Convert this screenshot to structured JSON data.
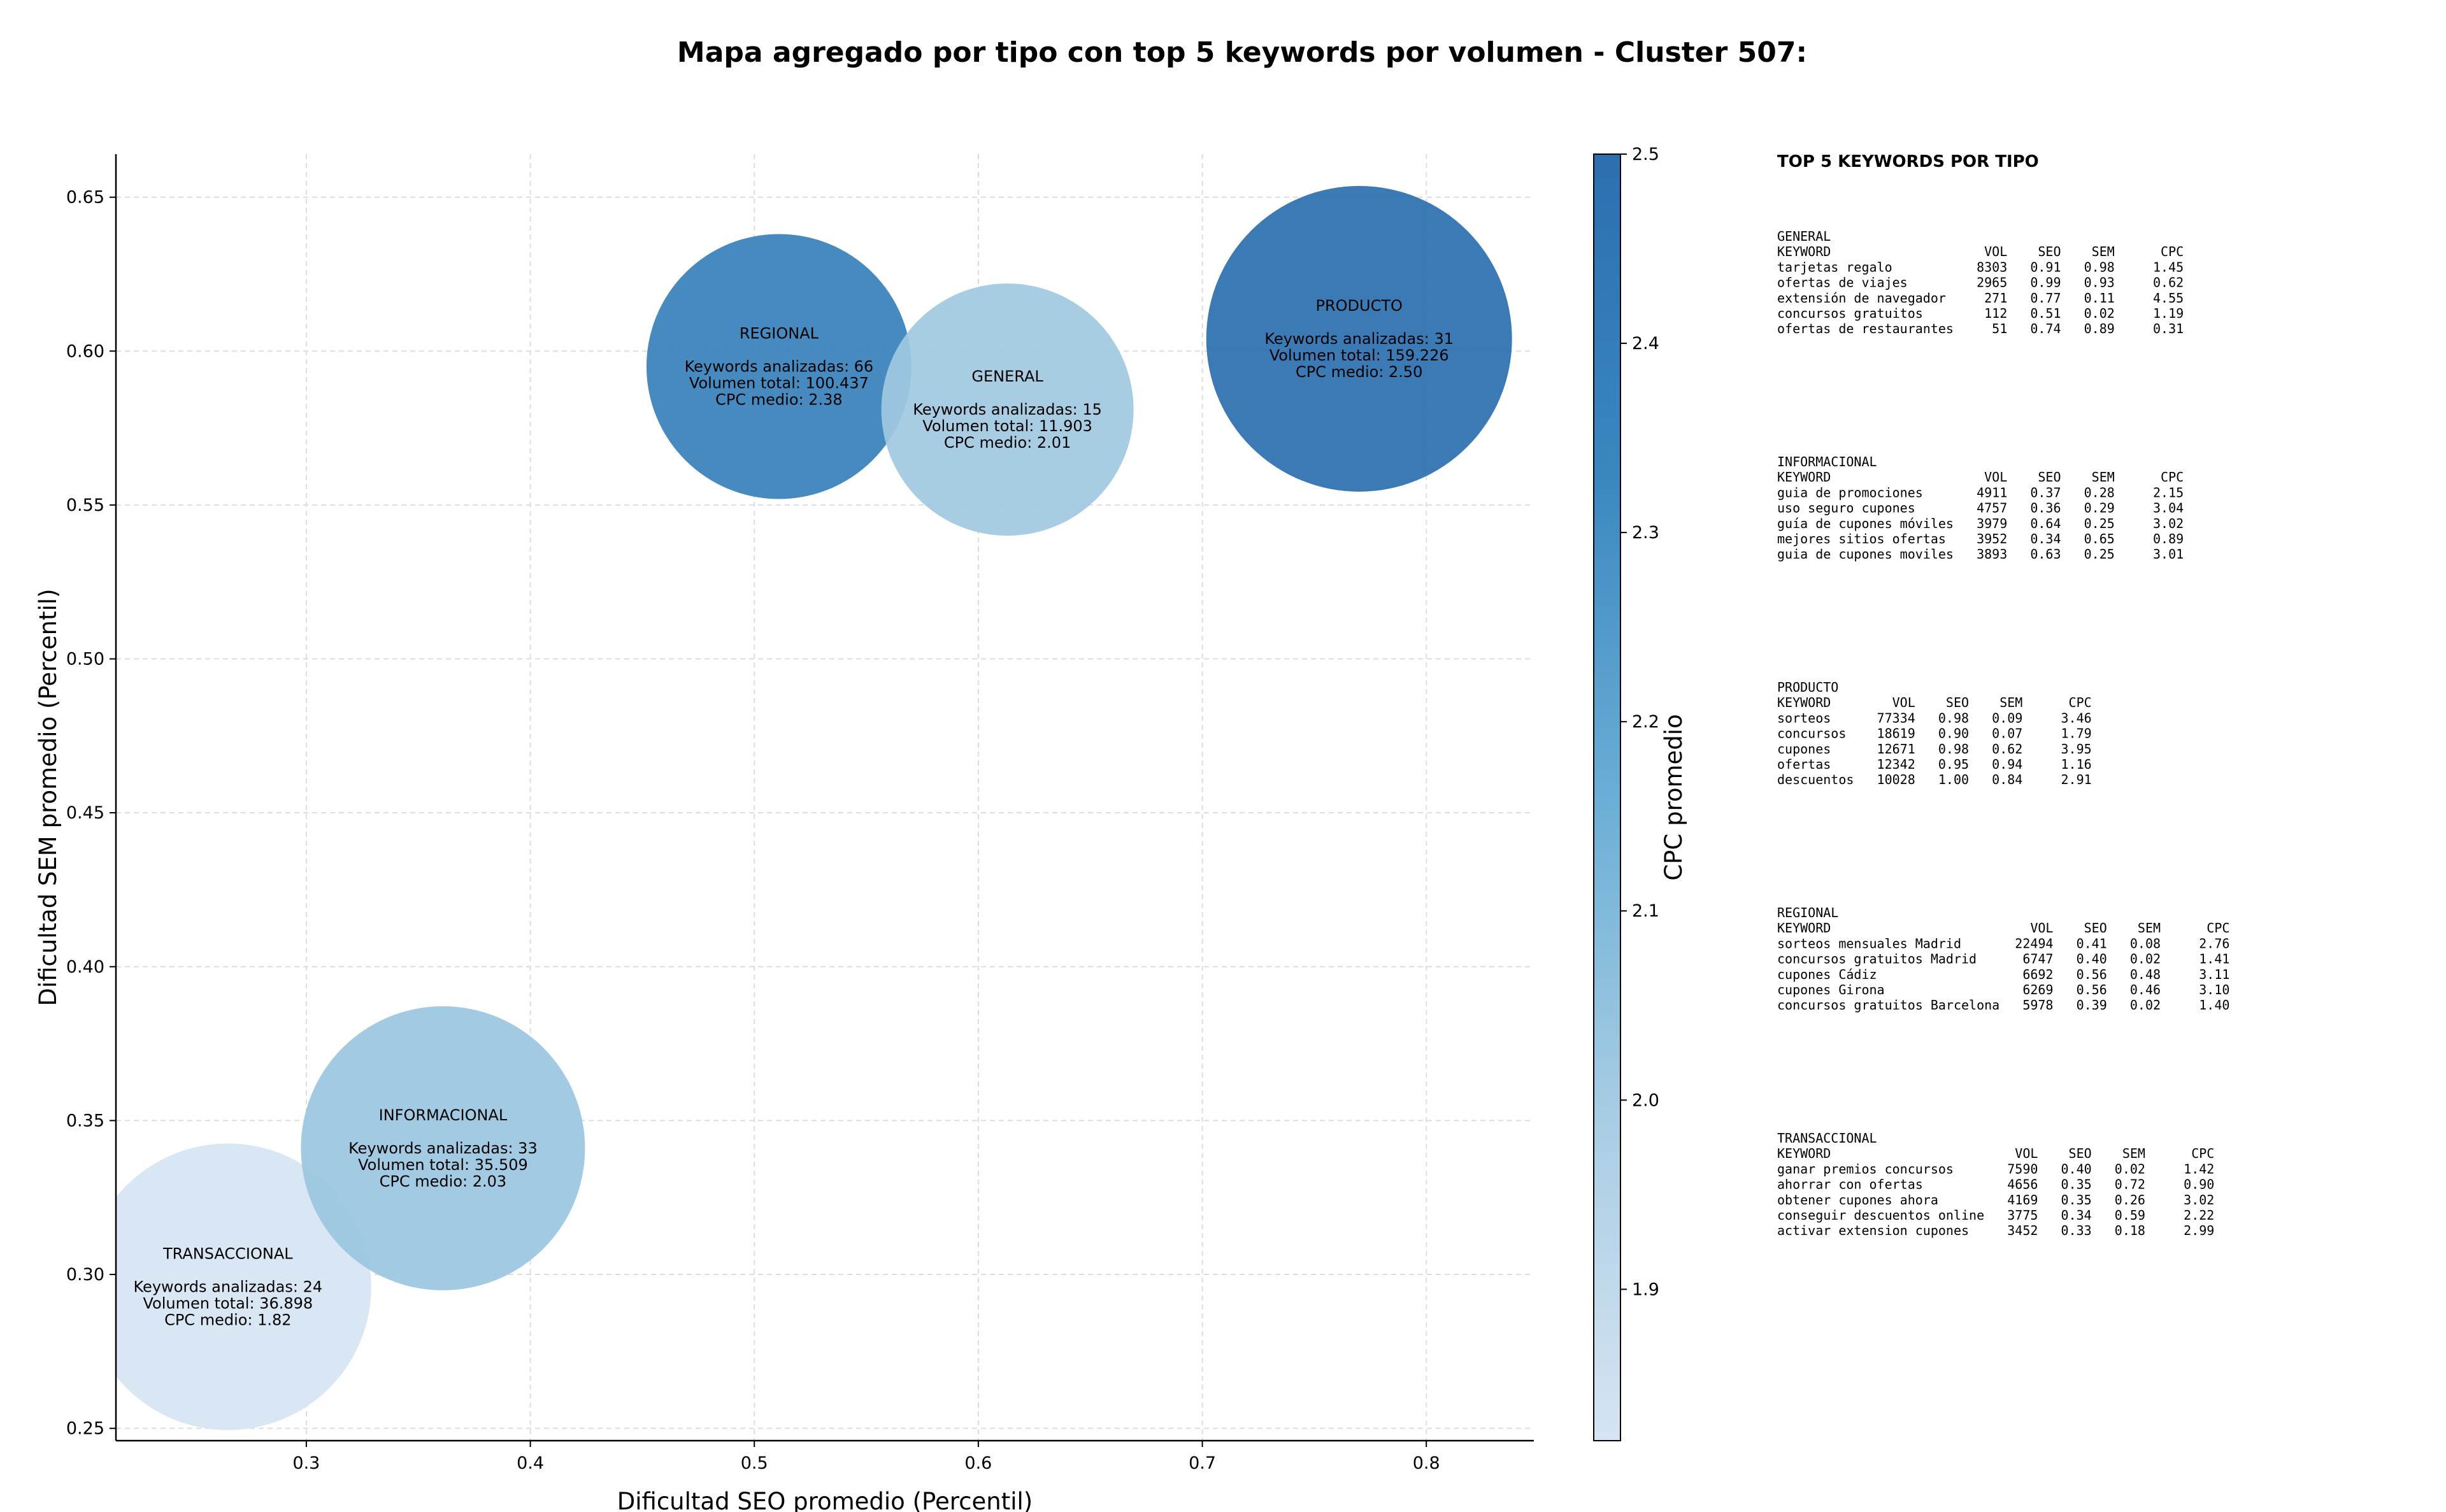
{
  "title": "Mapa agregado por tipo con top 5 keywords por volumen - Cluster 507:",
  "chart_data": {
    "type": "scatter",
    "subtype": "bubble",
    "xlabel": "Dificultad SEO promedio (Percentil)",
    "ylabel": "Dificultad SEM promedio (Percentil)",
    "xlim": [
      0.215,
      0.848
    ],
    "ylim": [
      0.246,
      0.664
    ],
    "xticks": [
      "0.3",
      "0.4",
      "0.5",
      "0.6",
      "0.7",
      "0.8"
    ],
    "yticks": [
      "0.25",
      "0.30",
      "0.35",
      "0.40",
      "0.45",
      "0.50",
      "0.55",
      "0.60",
      "0.65"
    ],
    "grid": true,
    "colorbar": {
      "label": "CPC promedio",
      "min": 1.82,
      "max": 2.5,
      "ticks": [
        "1.9",
        "2.0",
        "2.1",
        "2.2",
        "2.3",
        "2.4",
        "2.5"
      ],
      "colormap": [
        "#d6e4f2",
        "#a8cde3",
        "#6baed6",
        "#3a87c0",
        "#2b6faf"
      ]
    },
    "points": [
      {
        "name": "REGIONAL",
        "x": 0.511,
        "y": 0.595,
        "cpc": 2.38,
        "lines": [
          "REGIONAL",
          "",
          "Keywords analizadas: 66",
          "Volumen total: 100.437",
          "CPC medio: 2.38"
        ]
      },
      {
        "name": "GENERAL",
        "x": 0.613,
        "y": 0.581,
        "cpc": 2.01,
        "lines": [
          "GENERAL",
          "",
          "Keywords analizadas: 15",
          "Volumen total: 11.903",
          "CPC medio: 2.01"
        ]
      },
      {
        "name": "PRODUCTO",
        "x": 0.77,
        "y": 0.604,
        "cpc": 2.5,
        "lines": [
          "PRODUCTO",
          "",
          "Keywords analizadas: 31",
          "Volumen total: 159.226",
          "CPC medio: 2.50"
        ]
      },
      {
        "name": "INFORMACIONAL",
        "x": 0.361,
        "y": 0.341,
        "cpc": 2.03,
        "lines": [
          "INFORMACIONAL",
          "",
          "Keywords analizadas: 33",
          "Volumen total: 35.509",
          "CPC medio: 2.03"
        ]
      },
      {
        "name": "TRANSACCIONAL",
        "x": 0.265,
        "y": 0.296,
        "cpc": 1.82,
        "lines": [
          "TRANSACCIONAL",
          "",
          "Keywords analizadas: 24",
          "Volumen total: 36.898",
          "CPC medio: 1.82"
        ]
      }
    ]
  },
  "panel": {
    "title": "TOP 5 KEYWORDS POR TIPO",
    "groups": [
      {
        "name": "GENERAL",
        "lines": [
          "GENERAL",
          "KEYWORD                    VOL    SEO    SEM      CPC",
          "tarjetas regalo           8303   0.91   0.98     1.45",
          "ofertas de viajes         2965   0.99   0.93     0.62",
          "extensión de navegador     271   0.77   0.11     4.55",
          "concursos gratuitos        112   0.51   0.02     1.19",
          "ofertas de restaurantes     51   0.74   0.89     0.31"
        ]
      },
      {
        "name": "INFORMACIONAL",
        "lines": [
          "INFORMACIONAL",
          "KEYWORD                    VOL    SEO    SEM      CPC",
          "guia de promociones       4911   0.37   0.28     2.15",
          "uso seguro cupones        4757   0.36   0.29     3.04",
          "guía de cupones móviles   3979   0.64   0.25     3.02",
          "mejores sitios ofertas    3952   0.34   0.65     0.89",
          "guia de cupones moviles   3893   0.63   0.25     3.01"
        ]
      },
      {
        "name": "PRODUCTO",
        "lines": [
          "PRODUCTO",
          "KEYWORD        VOL    SEO    SEM      CPC",
          "sorteos      77334   0.98   0.09     3.46",
          "concursos    18619   0.90   0.07     1.79",
          "cupones      12671   0.98   0.62     3.95",
          "ofertas      12342   0.95   0.94     1.16",
          "descuentos   10028   1.00   0.84     2.91"
        ]
      },
      {
        "name": "REGIONAL",
        "lines": [
          "REGIONAL",
          "KEYWORD                          VOL    SEO    SEM      CPC",
          "sorteos mensuales Madrid       22494   0.41   0.08     2.76",
          "concursos gratuitos Madrid      6747   0.40   0.02     1.41",
          "cupones Cádiz                   6692   0.56   0.48     3.11",
          "cupones Girona                  6269   0.56   0.46     3.10",
          "concursos gratuitos Barcelona   5978   0.39   0.02     1.40"
        ]
      },
      {
        "name": "TRANSACCIONAL",
        "lines": [
          "TRANSACCIONAL",
          "KEYWORD                        VOL    SEO    SEM      CPC",
          "ganar premios concursos       7590   0.40   0.02     1.42",
          "ahorrar con ofertas           4656   0.35   0.72     0.90",
          "obtener cupones ahora         4169   0.35   0.26     3.02",
          "conseguir descuentos online   3775   0.34   0.59     2.22",
          "activar extension cupones     3452   0.33   0.18     2.99"
        ]
      }
    ]
  }
}
